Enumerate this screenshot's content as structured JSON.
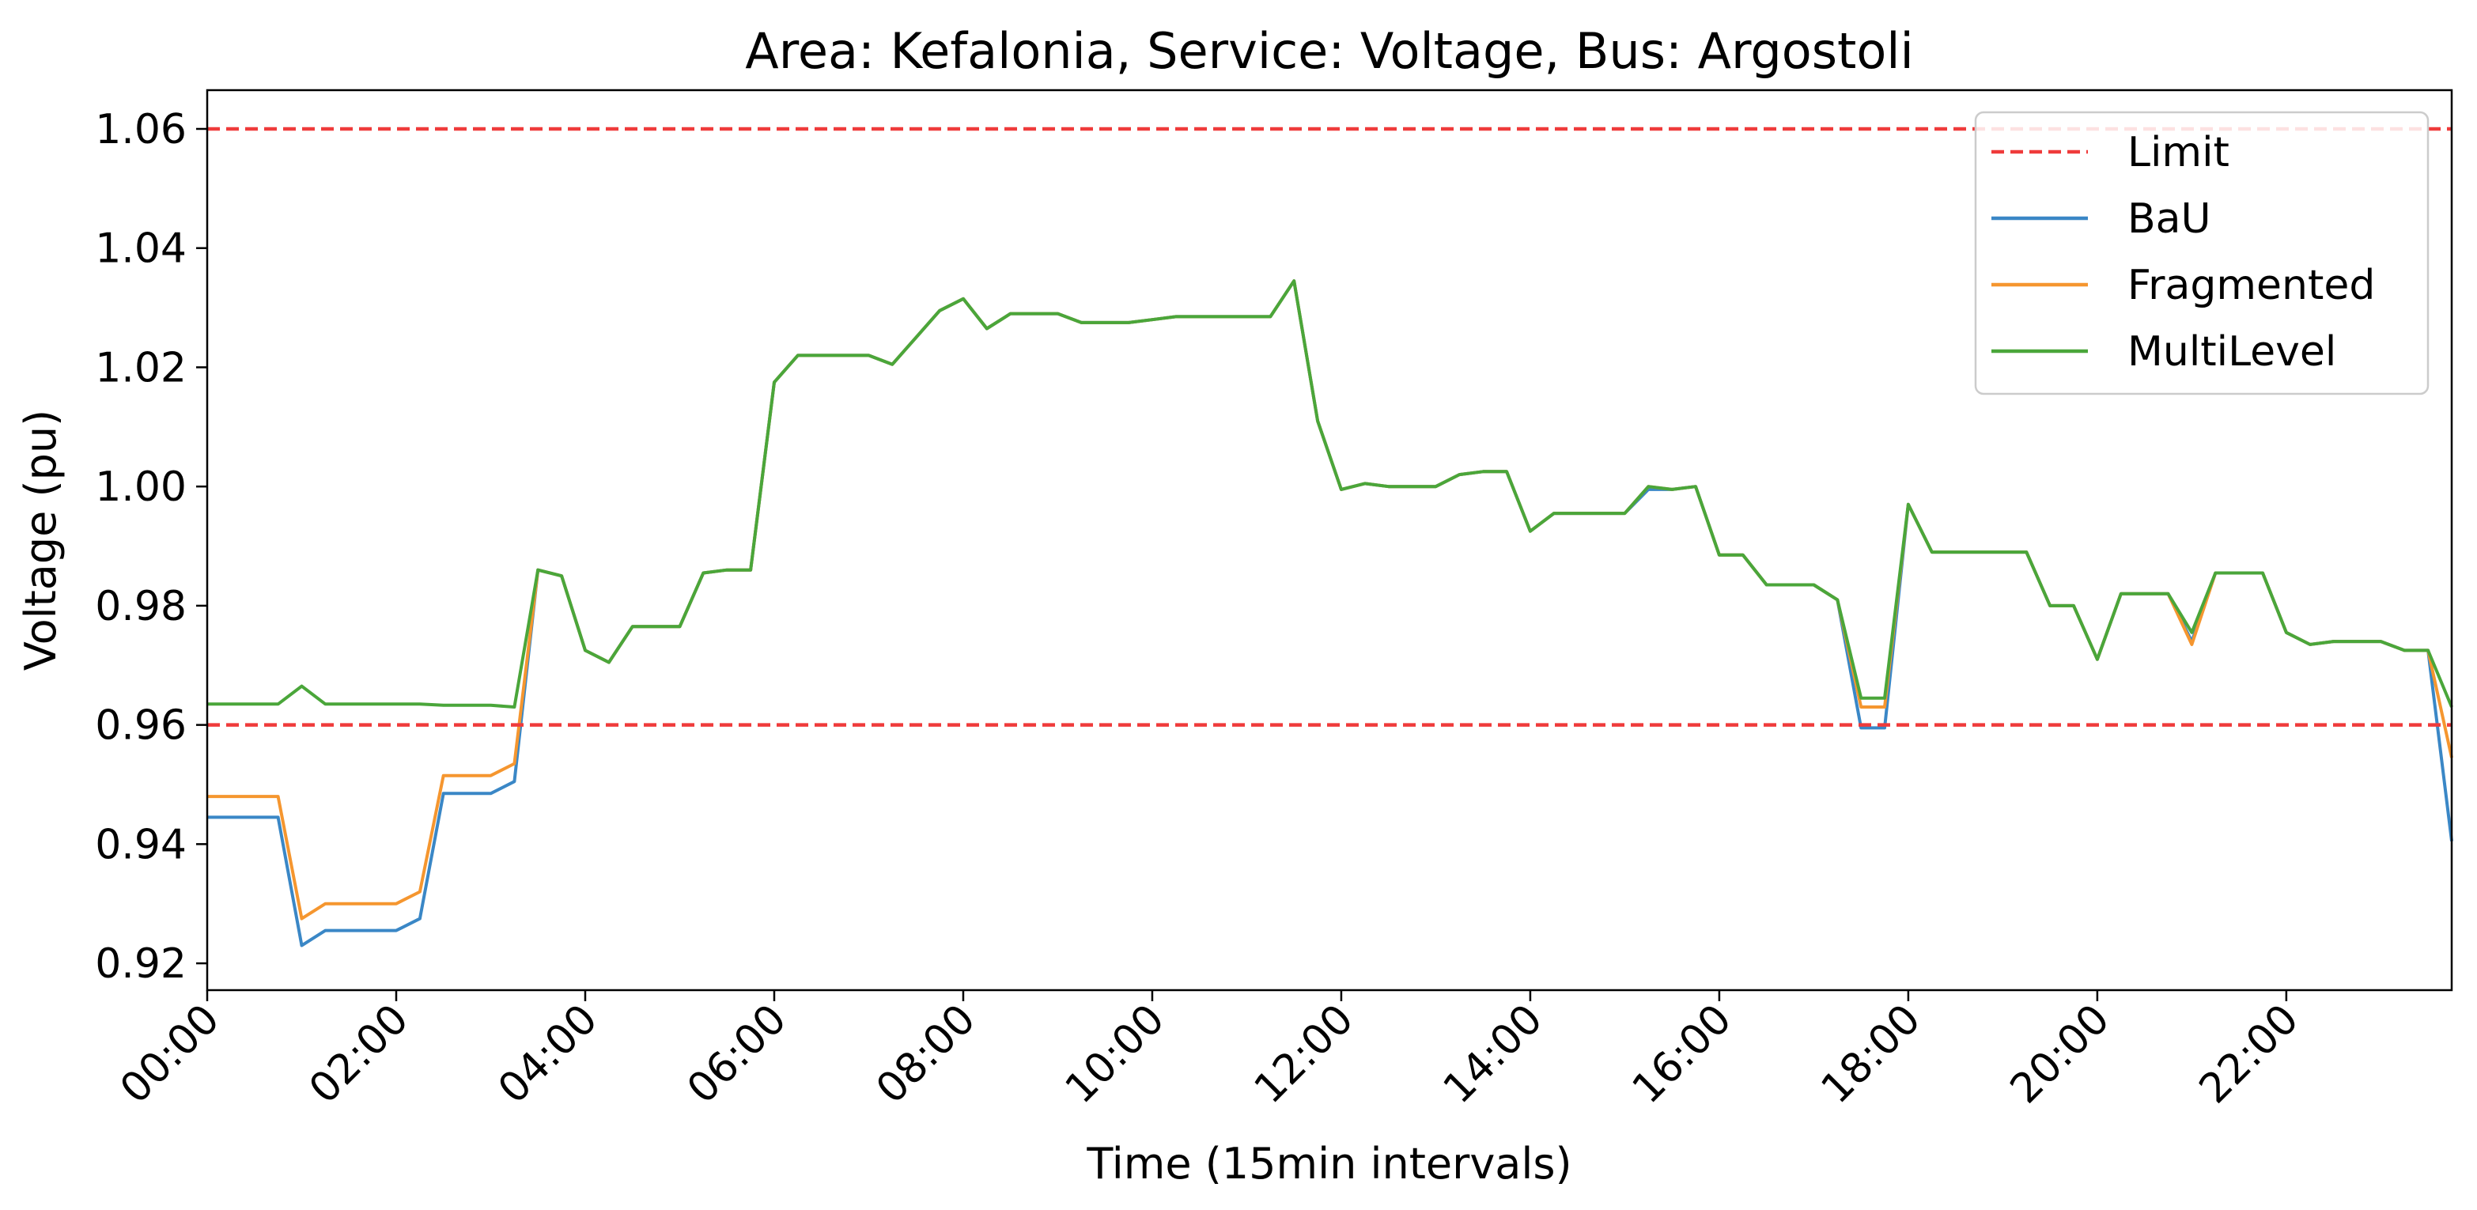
{
  "chart_data": {
    "type": "line",
    "title": "Area: Kefalonia, Service: Voltage, Bus: Argostoli",
    "xlabel": "Time (15min intervals)",
    "ylabel": "Voltage (pu)",
    "xlim": [
      0,
      95
    ],
    "ylim": [
      0.9155,
      1.0665
    ],
    "x_tick_values": [
      0,
      8,
      16,
      24,
      32,
      40,
      48,
      56,
      64,
      72,
      80,
      88
    ],
    "x_tick_labels": [
      "00:00",
      "02:00",
      "04:00",
      "06:00",
      "08:00",
      "10:00",
      "12:00",
      "14:00",
      "16:00",
      "18:00",
      "20:00",
      "22:00"
    ],
    "y_ticks": [
      "0.92",
      "0.94",
      "0.96",
      "0.98",
      "1.00",
      "1.02",
      "1.04",
      "1.06"
    ],
    "limits": [
      1.06,
      0.96
    ],
    "legend_position": "upper right",
    "grid": false,
    "series": [
      {
        "name": "Limit",
        "style": "dashed",
        "color": "#ef3b3b"
      },
      {
        "name": "BaU",
        "style": "solid",
        "color": "#3a87c6",
        "values": [
          0.9445,
          0.9445,
          0.9445,
          0.9445,
          0.923,
          0.9255,
          0.9255,
          0.9255,
          0.9255,
          0.9275,
          0.9485,
          0.9485,
          0.9485,
          0.9505,
          0.986,
          0.985,
          0.9725,
          0.9705,
          0.9765,
          0.9765,
          0.9765,
          0.9855,
          0.986,
          0.986,
          1.0175,
          1.022,
          1.022,
          1.022,
          1.022,
          1.0205,
          1.025,
          1.0295,
          1.0315,
          1.0265,
          1.029,
          1.029,
          1.029,
          1.0275,
          1.0275,
          1.0275,
          1.028,
          1.0285,
          1.0285,
          1.0285,
          1.0285,
          1.0285,
          1.0345,
          1.011,
          0.9995,
          1.0005,
          1.0,
          1.0,
          1.0,
          1.002,
          1.0025,
          1.0025,
          0.9925,
          0.9955,
          0.9955,
          0.9955,
          0.9955,
          0.9995,
          0.9995,
          1.0,
          0.9885,
          0.9885,
          0.9835,
          0.9835,
          0.9835,
          0.981,
          0.9595,
          0.9595,
          0.997,
          0.989,
          0.989,
          0.989,
          0.989,
          0.989,
          0.98,
          0.98,
          0.971,
          0.982,
          0.982,
          0.982,
          0.974,
          0.9855,
          0.9855,
          0.9855,
          0.9755,
          0.9735,
          0.974,
          0.974,
          0.974,
          0.9725,
          0.9725,
          0.9405
        ]
      },
      {
        "name": "Fragmented",
        "style": "solid",
        "color": "#f5962f",
        "values": [
          0.948,
          0.948,
          0.948,
          0.948,
          0.9275,
          0.93,
          0.93,
          0.93,
          0.93,
          0.932,
          0.9515,
          0.9515,
          0.9515,
          0.9535,
          0.986,
          0.985,
          0.9725,
          0.9705,
          0.9765,
          0.9765,
          0.9765,
          0.9855,
          0.986,
          0.986,
          1.0175,
          1.022,
          1.022,
          1.022,
          1.022,
          1.0205,
          1.025,
          1.0295,
          1.0315,
          1.0265,
          1.029,
          1.029,
          1.029,
          1.0275,
          1.0275,
          1.0275,
          1.028,
          1.0285,
          1.0285,
          1.0285,
          1.0285,
          1.0285,
          1.0345,
          1.011,
          0.9995,
          1.0005,
          1.0,
          1.0,
          1.0,
          1.002,
          1.0025,
          1.0025,
          0.9925,
          0.9955,
          0.9955,
          0.9955,
          0.9955,
          1.0,
          0.9995,
          1.0,
          0.9885,
          0.9885,
          0.9835,
          0.9835,
          0.9835,
          0.981,
          0.963,
          0.963,
          0.997,
          0.989,
          0.989,
          0.989,
          0.989,
          0.989,
          0.98,
          0.98,
          0.971,
          0.982,
          0.982,
          0.982,
          0.9735,
          0.9855,
          0.9855,
          0.9855,
          0.9755,
          0.9735,
          0.974,
          0.974,
          0.974,
          0.9725,
          0.9725,
          0.9545
        ]
      },
      {
        "name": "MultiLevel",
        "style": "solid",
        "color": "#4aa63a",
        "values": [
          0.9635,
          0.9635,
          0.9635,
          0.9635,
          0.9665,
          0.9635,
          0.9635,
          0.9635,
          0.9635,
          0.9635,
          0.9633,
          0.9633,
          0.9633,
          0.963,
          0.986,
          0.985,
          0.9725,
          0.9705,
          0.9765,
          0.9765,
          0.9765,
          0.9855,
          0.986,
          0.986,
          1.0175,
          1.022,
          1.022,
          1.022,
          1.022,
          1.0205,
          1.025,
          1.0295,
          1.0315,
          1.0265,
          1.029,
          1.029,
          1.029,
          1.0275,
          1.0275,
          1.0275,
          1.028,
          1.0285,
          1.0285,
          1.0285,
          1.0285,
          1.0285,
          1.0345,
          1.011,
          0.9995,
          1.0005,
          1.0,
          1.0,
          1.0,
          1.002,
          1.0025,
          1.0025,
          0.9925,
          0.9955,
          0.9955,
          0.9955,
          0.9955,
          1.0,
          0.9995,
          1.0,
          0.9885,
          0.9885,
          0.9835,
          0.9835,
          0.9835,
          0.981,
          0.9645,
          0.9645,
          0.997,
          0.989,
          0.989,
          0.989,
          0.989,
          0.989,
          0.98,
          0.98,
          0.971,
          0.982,
          0.982,
          0.982,
          0.9755,
          0.9855,
          0.9855,
          0.9855,
          0.9755,
          0.9735,
          0.974,
          0.974,
          0.974,
          0.9725,
          0.9725,
          0.963
        ]
      }
    ]
  }
}
